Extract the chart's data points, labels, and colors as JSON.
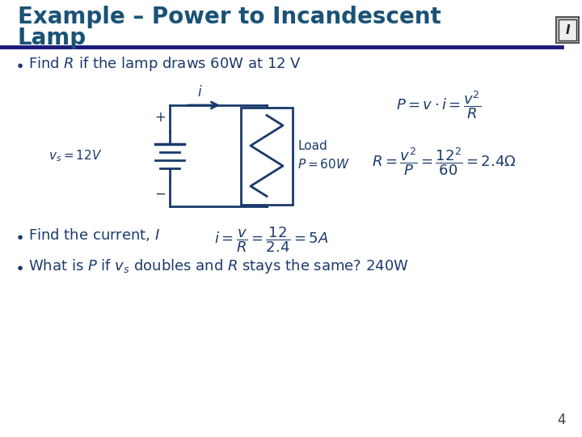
{
  "title_line1": "Example – Power to Incandescent",
  "title_line2": "Lamp",
  "title_color": "#1a5276",
  "title_fontsize": 20,
  "bg_color": "#FFFFFF",
  "rule_color": "#1a1a7a",
  "cc": "#1a3a6b",
  "bullet1": "Find $R$ if the lamp draws 60W at 12 V",
  "bullet2": "Find the current, $I$",
  "bullet3": "What is $P$ if $v_s$ doubles and $R$ stays the same? 240W",
  "page_number": "4",
  "label_load": "Load",
  "label_P60": "$P = 60W$",
  "label_vs": "$v_s = 12V$",
  "label_plus": "+",
  "label_minus": "−",
  "label_i": "$i$"
}
